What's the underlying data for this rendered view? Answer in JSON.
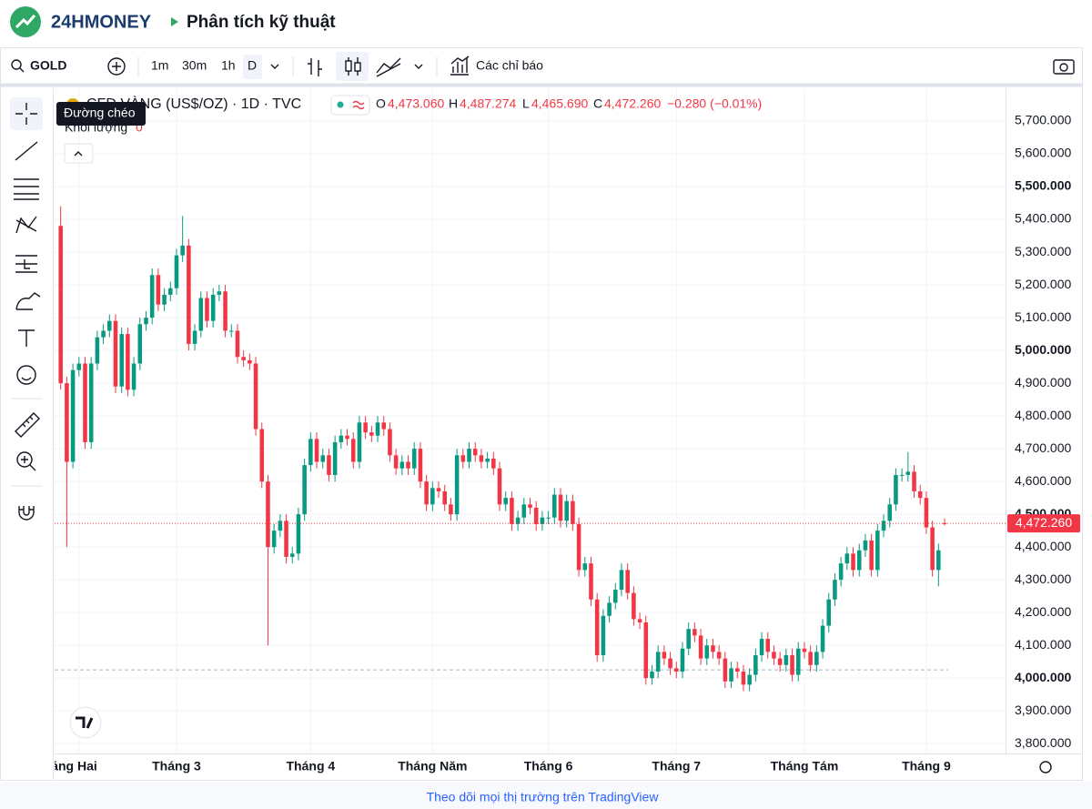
{
  "header": {
    "brand": "24HMONEY",
    "title": "Phân tích kỹ thuật"
  },
  "toolbar": {
    "symbol": "GOLD",
    "intervals": [
      "1m",
      "30m",
      "1h",
      "D"
    ],
    "indicators": "Các chỉ báo"
  },
  "tooltip": "Đường chéo",
  "legend": {
    "symbol": "CFD VÀNG (US$/OZ) · 1D · TVC",
    "o_label": "O",
    "open": "4,473.060",
    "h_label": "H",
    "high": "4,487.274",
    "l_label": "L",
    "low": "4,465.690",
    "c_label": "C",
    "close": "4,472.260",
    "change": "−0.280 (−0.01%)",
    "volume_label": "Khối lượng",
    "volume": "0"
  },
  "footer": "Theo dõi mọi thị trường trên TradingView",
  "chart_data": {
    "type": "candlestick",
    "up_color": "#089981",
    "down_color": "#f23645",
    "open": [
      5380,
      4900,
      4660,
      4940,
      4960,
      4720,
      4960,
      5040,
      5060,
      5090,
      4890,
      5050,
      4880,
      4960,
      5080,
      5100,
      5230,
      5140,
      5170,
      5190,
      5290,
      5320,
      5020,
      5060,
      5160,
      5090,
      5170,
      5180,
      5060,
      5060,
      4980,
      4970,
      4960,
      4760,
      4600,
      4400,
      4450,
      4480,
      4370,
      4380,
      4500,
      4650,
      4730,
      4660,
      4680,
      4620,
      4720,
      4740,
      4730,
      4660,
      4780,
      4750,
      4740,
      4780,
      4760,
      4680,
      4640,
      4660,
      4640,
      4700,
      4600,
      4530,
      4580,
      4570,
      4530,
      4500,
      4680,
      4660,
      4700,
      4680,
      4660,
      4670,
      4640,
      4530,
      4550,
      4470,
      4490,
      4530,
      4520,
      4470,
      4490,
      4490,
      4560,
      4480,
      4540,
      4470,
      4330,
      4350,
      4240,
      4070,
      4190,
      4230,
      4270,
      4330,
      4260,
      4180,
      4170,
      4000,
      4020,
      4080,
      4060,
      4030,
      4020,
      4090,
      4150,
      4130,
      4060,
      4100,
      4080,
      4060,
      3990,
      4030,
      4020,
      3980,
      4010,
      4070,
      4120,
      4080,
      4060,
      4040,
      4070,
      4010,
      4090,
      4080,
      4040,
      4080,
      4160,
      4240,
      4300,
      4350,
      4380,
      4330,
      4390,
      4420,
      4330,
      4450,
      4480,
      4530,
      4620,
      4620,
      4630,
      4570,
      4550,
      4460,
      4330,
      4473.06
    ],
    "high": [
      5440,
      4920,
      4960,
      4980,
      4980,
      4980,
      5060,
      5080,
      5110,
      5110,
      5070,
      5070,
      4980,
      5100,
      5120,
      5250,
      5250,
      5190,
      5210,
      5310,
      5410,
      5340,
      5080,
      5180,
      5180,
      5190,
      5200,
      5200,
      5080,
      5080,
      5000,
      4990,
      4980,
      4780,
      4620,
      4470,
      4500,
      4500,
      4400,
      4520,
      4670,
      4750,
      4750,
      4700,
      4700,
      4740,
      4760,
      4760,
      4750,
      4800,
      4800,
      4770,
      4800,
      4800,
      4780,
      4700,
      4680,
      4680,
      4720,
      4720,
      4620,
      4600,
      4600,
      4590,
      4550,
      4700,
      4700,
      4720,
      4720,
      4700,
      4690,
      4690,
      4660,
      4570,
      4570,
      4510,
      4550,
      4550,
      4540,
      4510,
      4510,
      4580,
      4580,
      4560,
      4560,
      4490,
      4370,
      4370,
      4260,
      4210,
      4250,
      4290,
      4350,
      4350,
      4280,
      4200,
      4190,
      4040,
      4100,
      4100,
      4080,
      4050,
      4110,
      4170,
      4170,
      4150,
      4120,
      4120,
      4100,
      4080,
      4050,
      4050,
      4040,
      4030,
      4090,
      4140,
      4140,
      4100,
      4080,
      4090,
      4090,
      4110,
      4110,
      4100,
      4100,
      4180,
      4260,
      4320,
      4370,
      4400,
      4400,
      4410,
      4440,
      4440,
      4470,
      4500,
      4550,
      4640,
      4640,
      4690,
      4650,
      4590,
      4570,
      4480,
      4410,
      4487.274
    ],
    "low": [
      4880,
      4400,
      4640,
      4920,
      4700,
      4700,
      4940,
      5020,
      5040,
      4870,
      4870,
      4860,
      4860,
      4940,
      5060,
      5080,
      5120,
      5120,
      5150,
      5170,
      5270,
      5000,
      5000,
      5040,
      5070,
      5070,
      5150,
      5040,
      5040,
      4960,
      4950,
      4940,
      4740,
      4580,
      4100,
      4380,
      4430,
      4350,
      4350,
      4360,
      4480,
      4630,
      4640,
      4640,
      4600,
      4600,
      4700,
      4710,
      4640,
      4640,
      4730,
      4720,
      4720,
      4740,
      4660,
      4620,
      4620,
      4620,
      4620,
      4580,
      4510,
      4510,
      4550,
      4510,
      4480,
      4480,
      4640,
      4640,
      4660,
      4640,
      4640,
      4620,
      4510,
      4510,
      4450,
      4450,
      4470,
      4500,
      4450,
      4450,
      4470,
      4470,
      4460,
      4460,
      4450,
      4310,
      4310,
      4220,
      4050,
      4050,
      4170,
      4210,
      4250,
      4240,
      4160,
      4150,
      3980,
      3980,
      4000,
      4040,
      4010,
      4000,
      4000,
      4070,
      4110,
      4040,
      4040,
      4060,
      4040,
      3970,
      3970,
      4000,
      3960,
      3960,
      3990,
      4050,
      4060,
      4040,
      4020,
      4020,
      3990,
      3990,
      4060,
      4020,
      4020,
      4060,
      4140,
      4220,
      4280,
      4330,
      4310,
      4310,
      4370,
      4310,
      4310,
      4430,
      4460,
      4510,
      4600,
      4600,
      4550,
      4530,
      4440,
      4310,
      4280,
      4465.69
    ],
    "close": [
      4900,
      4660,
      4940,
      4960,
      4720,
      4960,
      5040,
      5060,
      5090,
      4890,
      5050,
      4880,
      4960,
      5080,
      5100,
      5230,
      5140,
      5170,
      5190,
      5290,
      5320,
      5020,
      5060,
      5160,
      5090,
      5170,
      5180,
      5060,
      5060,
      4980,
      4970,
      4960,
      4760,
      4600,
      4400,
      4450,
      4480,
      4370,
      4380,
      4500,
      4650,
      4730,
      4660,
      4680,
      4620,
      4720,
      4740,
      4730,
      4660,
      4780,
      4750,
      4740,
      4780,
      4760,
      4680,
      4640,
      4660,
      4640,
      4700,
      4600,
      4530,
      4580,
      4570,
      4530,
      4500,
      4680,
      4660,
      4700,
      4680,
      4660,
      4670,
      4640,
      4530,
      4550,
      4470,
      4490,
      4530,
      4520,
      4470,
      4490,
      4490,
      4560,
      4480,
      4540,
      4470,
      4330,
      4350,
      4240,
      4070,
      4190,
      4230,
      4270,
      4330,
      4260,
      4180,
      4170,
      4000,
      4020,
      4080,
      4060,
      4030,
      4020,
      4090,
      4150,
      4130,
      4060,
      4100,
      4080,
      4060,
      3990,
      4030,
      4020,
      3980,
      4010,
      4070,
      4120,
      4080,
      4060,
      4040,
      4070,
      4010,
      4090,
      4080,
      4040,
      4080,
      4160,
      4240,
      4300,
      4350,
      4380,
      4330,
      4390,
      4420,
      4330,
      4450,
      4480,
      4530,
      4620,
      4620,
      4630,
      4570,
      4550,
      4460,
      4330,
      4390,
      4472.26
    ],
    "last_price_label": "4,472.260",
    "reference_line": 4025,
    "xlim": [
      -1,
      155
    ],
    "xticks": [
      {
        "value": 3,
        "label": "Tháng Hai"
      },
      {
        "value": 19,
        "label": "Tháng 3"
      },
      {
        "value": 41,
        "label": "Tháng 4"
      },
      {
        "value": 61,
        "label": "Tháng Năm"
      },
      {
        "value": 80,
        "label": "Tháng 6"
      },
      {
        "value": 101,
        "label": "Tháng 7"
      },
      {
        "value": 122,
        "label": "Tháng Tám"
      },
      {
        "value": 142,
        "label": "Tháng 9"
      }
    ],
    "ylim": [
      3770,
      5800
    ],
    "yticks": [
      {
        "value": 3800,
        "label": "3,800.000"
      },
      {
        "value": 3900,
        "label": "3,900.000"
      },
      {
        "value": 4000,
        "label": "4,000.000"
      },
      {
        "value": 4100,
        "label": "4,100.000"
      },
      {
        "value": 4200,
        "label": "4,200.000"
      },
      {
        "value": 4300,
        "label": "4,300.000"
      },
      {
        "value": 4400,
        "label": "4,400.000"
      },
      {
        "value": 4500,
        "label": "4,500.000"
      },
      {
        "value": 4600,
        "label": "4,600.000"
      },
      {
        "value": 4700,
        "label": "4,700.000"
      },
      {
        "value": 4800,
        "label": "4,800.000"
      },
      {
        "value": 4900,
        "label": "4,900.000"
      },
      {
        "value": 5000,
        "label": "5,000.000"
      },
      {
        "value": 5100,
        "label": "5,100.000"
      },
      {
        "value": 5200,
        "label": "5,200.000"
      },
      {
        "value": 5300,
        "label": "5,300.000"
      },
      {
        "value": 5400,
        "label": "5,400.000"
      },
      {
        "value": 5500,
        "label": "5,500.000"
      },
      {
        "value": 5600,
        "label": "5,600.000"
      },
      {
        "value": 5700,
        "label": "5,700.000"
      }
    ],
    "grid": true
  }
}
